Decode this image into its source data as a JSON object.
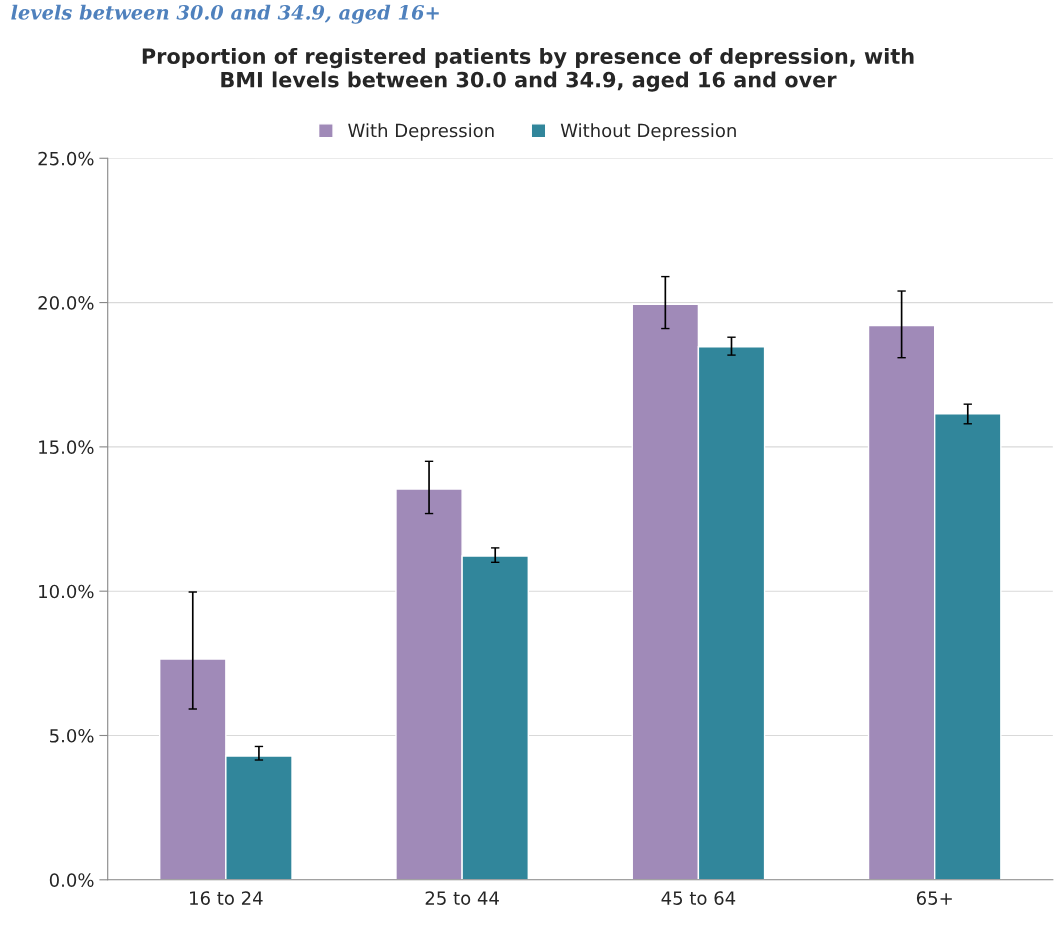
{
  "chart_data": {
    "type": "bar",
    "title": "Proportion of registered patients by presence of depression, with\nBMI levels between 30.0 and 34.9, aged 16 and over",
    "annotations": [
      "levels between 30.0 and 34.9, aged 16+"
    ],
    "categories": [
      "16 to 24",
      "25 to 44",
      "45 to 64",
      "65+"
    ],
    "series": [
      {
        "name": "With Depression",
        "color": "#a08ab8",
        "values": [
          7.65,
          13.54,
          19.94,
          19.2
        ],
        "errors": [
          [
            5.92,
            9.97
          ],
          [
            12.69,
            14.5
          ],
          [
            19.1,
            20.9
          ],
          [
            18.09,
            20.4
          ]
        ]
      },
      {
        "name": "Without Depression",
        "color": "#31869b",
        "values": [
          4.29,
          11.22,
          18.47,
          16.15
        ],
        "errors": [
          [
            4.15,
            4.62
          ],
          [
            11.0,
            11.5
          ],
          [
            18.18,
            18.8
          ],
          [
            15.8,
            16.48
          ]
        ]
      }
    ],
    "ylim": [
      0,
      25
    ],
    "yticks": [
      {
        "value": 0,
        "label": "0.0%"
      },
      {
        "value": 5,
        "label": "5.0%"
      },
      {
        "value": 10,
        "label": "10.0%"
      },
      {
        "value": 15,
        "label": "15.0%"
      },
      {
        "value": 20,
        "label": "20.0%"
      },
      {
        "value": 25,
        "label": "25.0%"
      }
    ],
    "grid": "y",
    "legend": "top"
  }
}
